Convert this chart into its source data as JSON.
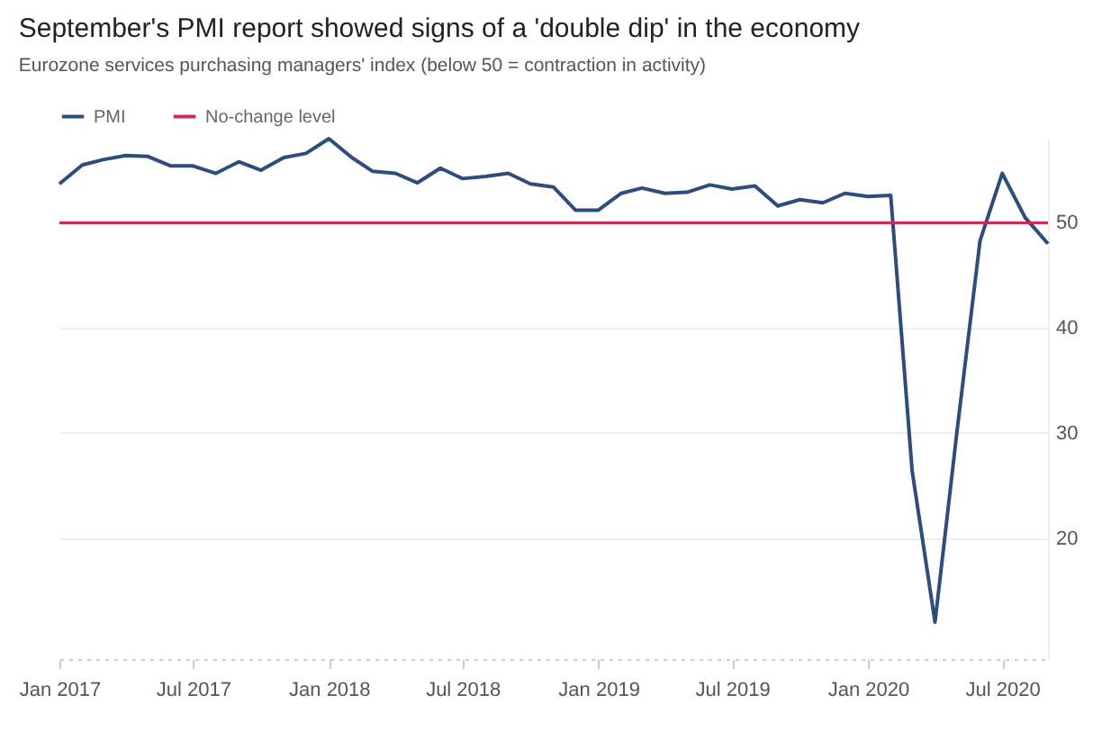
{
  "chart_data": {
    "type": "line",
    "title": "September's PMI report showed signs of a 'double dip' in the economy",
    "subtitle": "Eurozone services purchasing managers' index (below 50 = contraction in activity)",
    "x": [
      "2017-01",
      "2017-02",
      "2017-03",
      "2017-04",
      "2017-05",
      "2017-06",
      "2017-07",
      "2017-08",
      "2017-09",
      "2017-10",
      "2017-11",
      "2017-12",
      "2018-01",
      "2018-02",
      "2018-03",
      "2018-04",
      "2018-05",
      "2018-06",
      "2018-07",
      "2018-08",
      "2018-09",
      "2018-10",
      "2018-11",
      "2018-12",
      "2019-01",
      "2019-02",
      "2019-03",
      "2019-04",
      "2019-05",
      "2019-06",
      "2019-07",
      "2019-08",
      "2019-09",
      "2019-10",
      "2019-11",
      "2019-12",
      "2020-01",
      "2020-02",
      "2020-03",
      "2020-04",
      "2020-05",
      "2020-06",
      "2020-07",
      "2020-08",
      "2020-09"
    ],
    "series": [
      {
        "name": "PMI",
        "color": "#2e4d7d",
        "values": [
          53.7,
          55.5,
          56.0,
          56.4,
          56.3,
          55.4,
          55.4,
          54.7,
          55.8,
          55.0,
          56.2,
          56.6,
          58.0,
          56.2,
          54.9,
          54.7,
          53.8,
          55.2,
          54.2,
          54.4,
          54.7,
          53.7,
          53.4,
          51.2,
          51.2,
          52.8,
          53.3,
          52.8,
          52.9,
          53.6,
          53.2,
          53.5,
          51.6,
          52.2,
          51.9,
          52.8,
          52.5,
          52.6,
          26.4,
          12.0,
          30.3,
          48.3,
          54.7,
          50.5,
          48.0
        ]
      }
    ],
    "ref_lines": [
      {
        "axis": "y",
        "value": 50,
        "label": "No-change level",
        "color": "#cc2b55"
      }
    ],
    "xlim": [
      "2017-01",
      "2020-09"
    ],
    "xticks": [
      {
        "value": "2017-01",
        "label": "Jan 2017"
      },
      {
        "value": "2017-07",
        "label": "Jul 2017"
      },
      {
        "value": "2018-01",
        "label": "Jan 2018"
      },
      {
        "value": "2018-07",
        "label": "Jul 2018"
      },
      {
        "value": "2019-01",
        "label": "Jan 2019"
      },
      {
        "value": "2019-07",
        "label": "Jul 2019"
      },
      {
        "value": "2020-01",
        "label": "Jan 2020"
      },
      {
        "value": "2020-07",
        "label": "Jul 2020"
      }
    ],
    "ylim": [
      8.5,
      58
    ],
    "yticks": [
      20,
      30,
      40,
      50
    ],
    "grid": "y",
    "legend": "top left"
  }
}
